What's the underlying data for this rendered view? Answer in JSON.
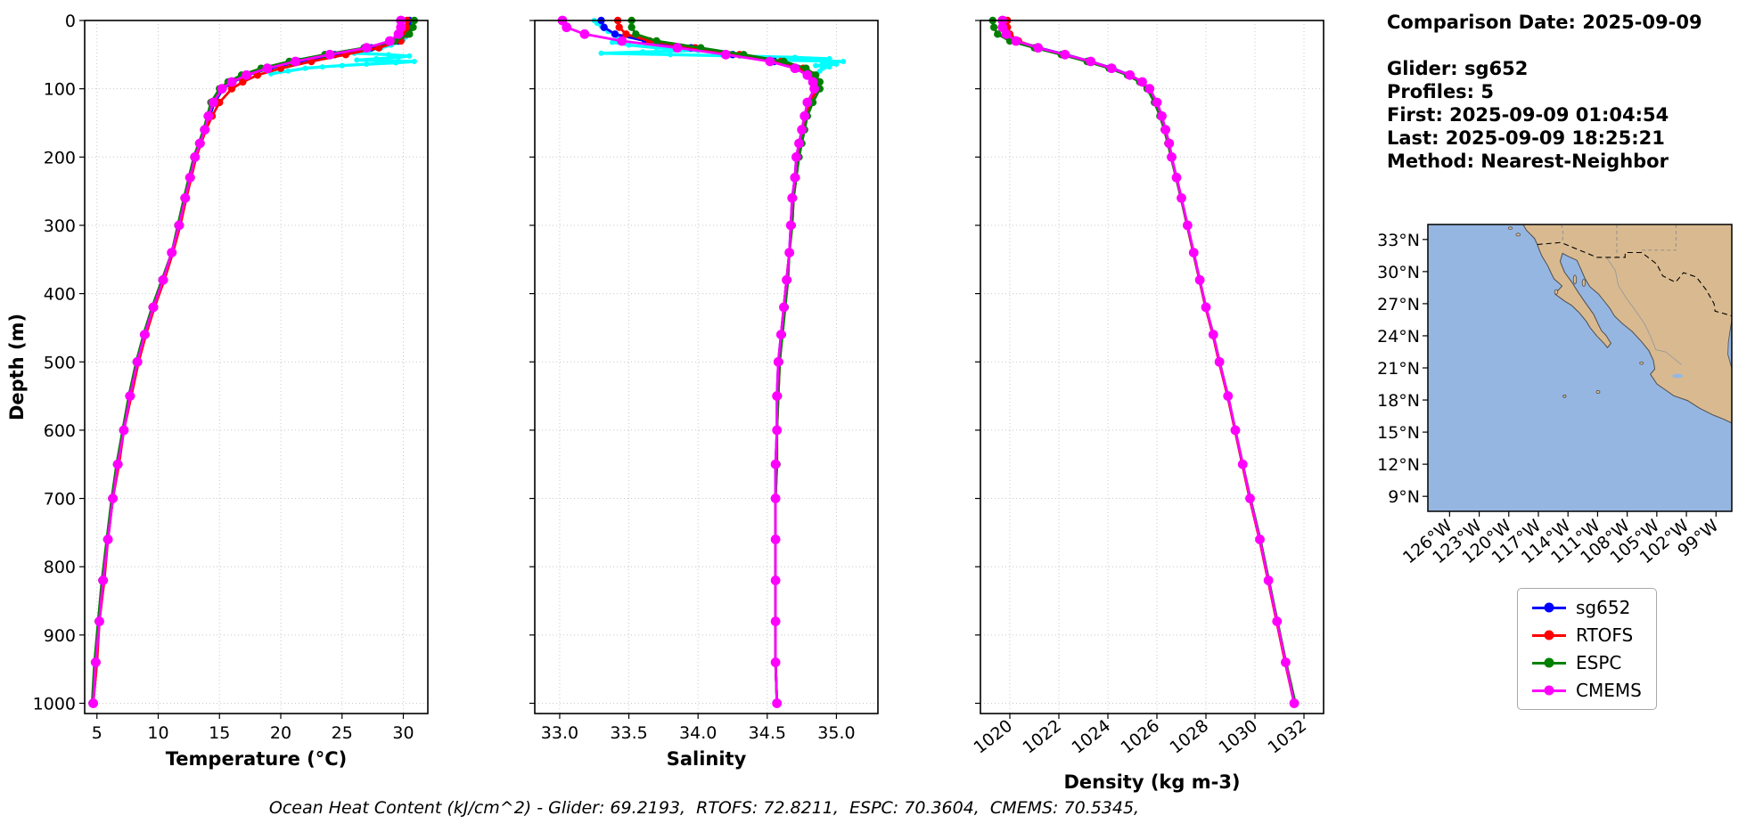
{
  "info_panel": {
    "comparison_date": "Comparison Date: 2025-09-09",
    "glider": "Glider: sg652",
    "profiles": "Profiles: 5",
    "first": "First: 2025-09-09 01:04:54",
    "last": "Last: 2025-09-09 18:25:21",
    "method": "Method: Nearest-Neighbor"
  },
  "caption": "Ocean Heat Content (kJ/cm^2) - Glider: 69.2193,  RTOFS: 72.8211,  ESPC: 70.3604,  CMEMS: 70.5345,",
  "legend": {
    "entries": [
      {
        "label": "sg652",
        "color": "#0000ff"
      },
      {
        "label": "RTOFS",
        "color": "#ff0000"
      },
      {
        "label": "ESPC",
        "color": "#008000"
      },
      {
        "label": "CMEMS",
        "color": "#ff00ff"
      }
    ]
  },
  "map": {
    "lat_tick_labels": [
      "33°N",
      "30°N",
      "27°N",
      "24°N",
      "21°N",
      "18°N",
      "15°N",
      "12°N",
      "9°N"
    ],
    "lat_tick_values": [
      33,
      30,
      27,
      24,
      21,
      18,
      15,
      12,
      9
    ],
    "lon_tick_labels": [
      "126°W",
      "123°W",
      "120°W",
      "117°W",
      "114°W",
      "111°W",
      "108°W",
      "105°W",
      "102°W",
      "99°W"
    ],
    "lon_tick_values": [
      126,
      123,
      120,
      117,
      114,
      111,
      108,
      105,
      102,
      99
    ],
    "extent": {
      "lon_west": 128.2,
      "lon_east": 97.4,
      "lat_south": 7.6,
      "lat_north": 34.4
    },
    "ocean_color": "#96b6e2",
    "land_color": "#d9ba90",
    "coast_color": "#4d4d4d"
  },
  "chart_data": [
    {
      "type": "line",
      "xlabel": "Temperature (°C)",
      "ylabel": "Depth (m)",
      "xlim": [
        4,
        32
      ],
      "xticks": [
        5,
        10,
        15,
        20,
        25,
        30
      ],
      "xtick_labels": [
        "5",
        "10",
        "15",
        "20",
        "25",
        "30"
      ],
      "xtick_rotation": 0,
      "ylim": [
        0,
        1015
      ],
      "yticks": [
        0,
        100,
        200,
        300,
        400,
        500,
        600,
        700,
        800,
        900,
        1000
      ],
      "show_ytick_labels": true,
      "depths": [
        0,
        10,
        20,
        30,
        40,
        50,
        60,
        70,
        80,
        90,
        100,
        120,
        140,
        160,
        180,
        200,
        230,
        260,
        300,
        340,
        380,
        420,
        460,
        500,
        550,
        600,
        650,
        700,
        760,
        820,
        880,
        940,
        1000
      ],
      "series": [
        {
          "name": "sg652",
          "color": "#0000ff",
          "marker_size": 4.2,
          "values": [
            30.5,
            30.5,
            30.3,
            29.6,
            27.4,
            24.4,
            21.5,
            19.1,
            17.3,
            16.1,
            15.3,
            14.6,
            14.2,
            13.8,
            13.4,
            13.0,
            12.6,
            12.2,
            11.7,
            11.2,
            10.4,
            9.6,
            8.9,
            8.3,
            7.7,
            7.2,
            6.7,
            6.3,
            5.9,
            5.5,
            5.2,
            4.9,
            4.7
          ]
        },
        {
          "name": "RTOFS",
          "color": "#ff0000",
          "marker_size": 4.2,
          "values": [
            30.3,
            30.3,
            30.2,
            29.8,
            28.0,
            25.3,
            22.5,
            20.0,
            18.1,
            16.9,
            16.0,
            15.0,
            14.4,
            13.9,
            13.5,
            13.1,
            12.7,
            12.3,
            11.8,
            11.2,
            10.5,
            9.7,
            9.0,
            8.4,
            7.8,
            7.2,
            6.8,
            6.3,
            5.9,
            5.6,
            5.2,
            5.0,
            4.7
          ]
        },
        {
          "name": "ESPC",
          "color": "#008000",
          "marker_size": 4.2,
          "values": [
            30.9,
            30.8,
            30.5,
            29.3,
            26.8,
            23.6,
            20.7,
            18.4,
            16.8,
            15.7,
            15.0,
            14.3,
            14.0,
            13.7,
            13.3,
            12.9,
            12.5,
            12.1,
            11.6,
            11.1,
            10.3,
            9.5,
            8.8,
            8.2,
            7.6,
            7.1,
            6.6,
            6.2,
            5.8,
            5.4,
            5.1,
            4.8,
            4.6
          ]
        },
        {
          "name": "CMEMS",
          "color": "#ff00ff",
          "marker_size": 5.4,
          "values": [
            29.8,
            29.8,
            29.6,
            28.9,
            27.0,
            24.0,
            21.2,
            18.9,
            17.2,
            16.0,
            15.2,
            14.5,
            14.1,
            13.8,
            13.4,
            13.0,
            12.6,
            12.2,
            11.7,
            11.1,
            10.4,
            9.6,
            8.9,
            8.3,
            7.7,
            7.2,
            6.7,
            6.3,
            5.9,
            5.5,
            5.2,
            4.9,
            4.7
          ]
        }
      ],
      "raw": {
        "name": "glider-raw",
        "color": "#00ffff",
        "depths": [
          0,
          4,
          8,
          12,
          16,
          20,
          24,
          28,
          32,
          36,
          40,
          44,
          48,
          50,
          52,
          54,
          56,
          58,
          60,
          62,
          64,
          66,
          68,
          70,
          74,
          78
        ],
        "values": [
          30.7,
          30.7,
          30.6,
          30.6,
          30.5,
          30.4,
          30.2,
          30.0,
          29.6,
          29.0,
          28.2,
          27.2,
          26.0,
          28.8,
          30.5,
          29.6,
          27.8,
          26.2,
          30.9,
          29.4,
          27.0,
          25.0,
          23.4,
          22.0,
          20.6,
          19.2
        ]
      }
    },
    {
      "type": "line",
      "xlabel": "Salinity",
      "ylabel": "",
      "xlim": [
        32.82,
        35.3
      ],
      "xticks": [
        33.0,
        33.5,
        34.0,
        34.5,
        35.0
      ],
      "xtick_labels": [
        "33.0",
        "33.5",
        "34.0",
        "34.5",
        "35.0"
      ],
      "xtick_rotation": 0,
      "ylim": [
        0,
        1015
      ],
      "yticks": [
        0,
        100,
        200,
        300,
        400,
        500,
        600,
        700,
        800,
        900,
        1000
      ],
      "show_ytick_labels": false,
      "depths": [
        0,
        10,
        20,
        30,
        40,
        50,
        60,
        70,
        80,
        90,
        100,
        120,
        140,
        160,
        180,
        200,
        230,
        260,
        300,
        340,
        380,
        420,
        460,
        500,
        550,
        600,
        650,
        700,
        760,
        820,
        880,
        940,
        1000
      ],
      "series": [
        {
          "name": "sg652",
          "color": "#0000ff",
          "marker_size": 4.2,
          "values": [
            33.3,
            33.32,
            33.4,
            33.62,
            33.95,
            34.25,
            34.55,
            34.72,
            34.8,
            34.84,
            34.85,
            34.8,
            34.77,
            34.75,
            34.73,
            34.71,
            34.7,
            34.68,
            34.67,
            34.66,
            34.64,
            34.62,
            34.6,
            34.58,
            34.57,
            34.57,
            34.56,
            34.56,
            34.56,
            34.56,
            34.56,
            34.56,
            34.57
          ]
        },
        {
          "name": "RTOFS",
          "color": "#ff0000",
          "marker_size": 4.2,
          "values": [
            33.42,
            33.43,
            33.48,
            33.65,
            33.98,
            34.3,
            34.6,
            34.76,
            34.83,
            34.86,
            34.86,
            34.81,
            34.78,
            34.76,
            34.74,
            34.72,
            34.71,
            34.69,
            34.68,
            34.66,
            34.64,
            34.62,
            34.6,
            34.59,
            34.58,
            34.57,
            34.57,
            34.56,
            34.56,
            34.56,
            34.56,
            34.56,
            34.57
          ]
        },
        {
          "name": "ESPC",
          "color": "#008000",
          "marker_size": 4.2,
          "values": [
            33.52,
            33.52,
            33.55,
            33.7,
            34.02,
            34.33,
            34.62,
            34.78,
            34.85,
            34.88,
            34.88,
            34.83,
            34.79,
            34.77,
            34.75,
            34.73,
            34.71,
            34.69,
            34.68,
            34.66,
            34.65,
            34.63,
            34.61,
            34.59,
            34.58,
            34.57,
            34.57,
            34.56,
            34.56,
            34.56,
            34.56,
            34.56,
            34.57
          ]
        },
        {
          "name": "CMEMS",
          "color": "#ff00ff",
          "marker_size": 5.4,
          "values": [
            33.02,
            33.05,
            33.18,
            33.45,
            33.85,
            34.2,
            34.52,
            34.7,
            34.79,
            34.83,
            34.84,
            34.79,
            34.77,
            34.75,
            34.73,
            34.71,
            34.7,
            34.68,
            34.67,
            34.66,
            34.64,
            34.62,
            34.6,
            34.58,
            34.57,
            34.57,
            34.56,
            34.56,
            34.56,
            34.56,
            34.56,
            34.56,
            34.57
          ]
        }
      ],
      "raw": {
        "name": "glider-raw",
        "color": "#00ffff",
        "depths": [
          0,
          4,
          8,
          12,
          16,
          20,
          24,
          28,
          32,
          36,
          40,
          44,
          46,
          48,
          50,
          52,
          54,
          56,
          58,
          60,
          62,
          64,
          66,
          68,
          70,
          74,
          78
        ],
        "values": [
          33.25,
          33.27,
          33.3,
          33.32,
          33.35,
          33.4,
          33.45,
          33.42,
          33.38,
          33.5,
          33.7,
          34.0,
          33.6,
          33.3,
          33.8,
          34.3,
          34.7,
          34.95,
          34.6,
          35.05,
          34.9,
          35.0,
          34.85,
          34.95,
          34.9,
          34.88,
          34.86
        ]
      }
    },
    {
      "type": "line",
      "xlabel": "Density (kg m-3)",
      "ylabel": "",
      "xlim": [
        1018.8,
        1032.8
      ],
      "xticks": [
        1020,
        1022,
        1024,
        1026,
        1028,
        1030,
        1032
      ],
      "xtick_labels": [
        "1020",
        "1022",
        "1024",
        "1026",
        "1028",
        "1030",
        "1032"
      ],
      "xtick_rotation": 40,
      "ylim": [
        0,
        1015
      ],
      "yticks": [
        0,
        100,
        200,
        300,
        400,
        500,
        600,
        700,
        800,
        900,
        1000
      ],
      "show_ytick_labels": false,
      "depths": [
        0,
        10,
        20,
        30,
        40,
        50,
        60,
        70,
        80,
        90,
        100,
        120,
        140,
        160,
        180,
        200,
        230,
        260,
        300,
        340,
        380,
        420,
        460,
        500,
        550,
        600,
        650,
        700,
        760,
        820,
        880,
        940,
        1000
      ],
      "series": [
        {
          "name": "sg652",
          "color": "#0000ff",
          "marker_size": 4.2,
          "values": [
            1019.8,
            1019.8,
            1019.9,
            1020.3,
            1021.2,
            1022.3,
            1023.3,
            1024.2,
            1024.9,
            1025.4,
            1025.7,
            1026.0,
            1026.2,
            1026.35,
            1026.5,
            1026.6,
            1026.8,
            1027.0,
            1027.25,
            1027.5,
            1027.75,
            1028.0,
            1028.3,
            1028.55,
            1028.9,
            1029.2,
            1029.5,
            1029.8,
            1030.2,
            1030.55,
            1030.9,
            1031.25,
            1031.6
          ]
        },
        {
          "name": "RTOFS",
          "color": "#ff0000",
          "marker_size": 4.2,
          "values": [
            1019.9,
            1019.9,
            1020.0,
            1020.35,
            1021.1,
            1022.2,
            1023.2,
            1024.1,
            1024.85,
            1025.35,
            1025.65,
            1025.95,
            1026.15,
            1026.3,
            1026.45,
            1026.58,
            1026.78,
            1026.98,
            1027.23,
            1027.48,
            1027.73,
            1027.98,
            1028.28,
            1028.53,
            1028.88,
            1029.18,
            1029.48,
            1029.78,
            1030.18,
            1030.53,
            1030.88,
            1031.23,
            1031.6
          ]
        },
        {
          "name": "ESPC",
          "color": "#008000",
          "marker_size": 4.2,
          "values": [
            1019.3,
            1019.35,
            1019.5,
            1020.0,
            1021.0,
            1022.1,
            1023.15,
            1024.05,
            1024.8,
            1025.3,
            1025.6,
            1025.9,
            1026.12,
            1026.3,
            1026.45,
            1026.58,
            1026.78,
            1026.98,
            1027.24,
            1027.49,
            1027.74,
            1028.0,
            1028.3,
            1028.56,
            1028.9,
            1029.2,
            1029.5,
            1029.82,
            1030.22,
            1030.57,
            1030.92,
            1031.27,
            1031.65
          ]
        },
        {
          "name": "CMEMS",
          "color": "#ff00ff",
          "marker_size": 5.4,
          "values": [
            1019.7,
            1019.7,
            1019.85,
            1020.25,
            1021.15,
            1022.25,
            1023.3,
            1024.15,
            1024.9,
            1025.4,
            1025.7,
            1026.0,
            1026.2,
            1026.35,
            1026.5,
            1026.6,
            1026.8,
            1027.0,
            1027.25,
            1027.5,
            1027.75,
            1028.0,
            1028.3,
            1028.55,
            1028.9,
            1029.2,
            1029.5,
            1029.8,
            1030.2,
            1030.55,
            1030.9,
            1031.25,
            1031.6
          ]
        }
      ]
    }
  ]
}
